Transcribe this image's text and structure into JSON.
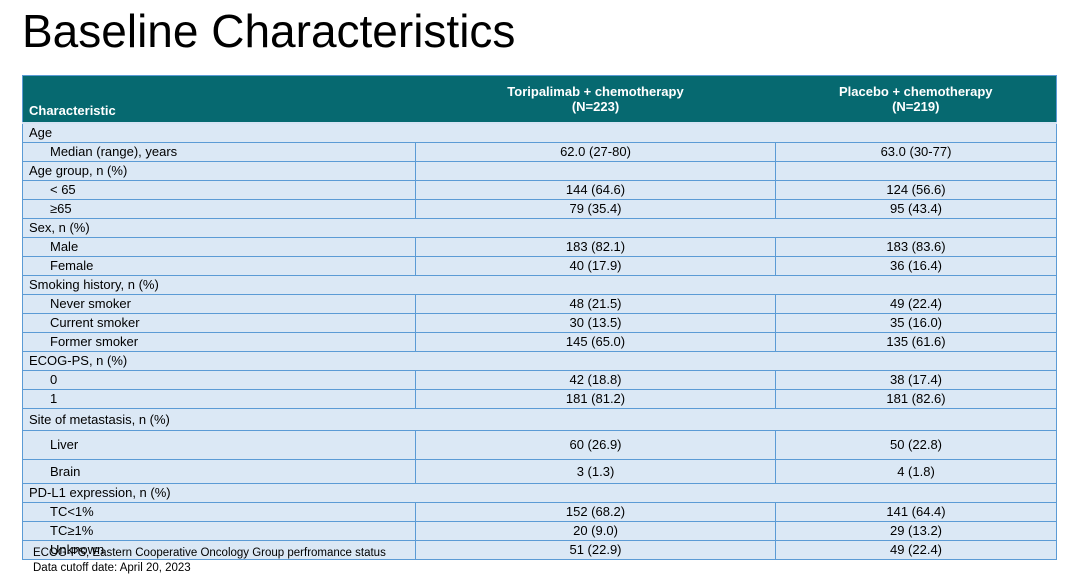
{
  "title": "Baseline Characteristics",
  "colors": {
    "header_bg": "#066970",
    "header_text": "#ffffff",
    "row_bg": "#dbe8f5",
    "border_blue": "#5b9bd5",
    "title_text": "#000000"
  },
  "table": {
    "header": {
      "characteristic": "Characteristic",
      "arm1_line1": "Toripalimab + chemotherapy",
      "arm1_line2": "(N=223)",
      "arm2_line1": "Placebo + chemotherapy",
      "arm2_line2": "(N=219)"
    },
    "rows": [
      {
        "type": "section",
        "divided": false,
        "label": "Age"
      },
      {
        "type": "data",
        "label": "Median (range), years",
        "arm1": "62.0 (27-80)",
        "arm2": "63.0 (30-77)"
      },
      {
        "type": "section",
        "divided": true,
        "label": "Age group, n (%)",
        "arm1": "",
        "arm2": ""
      },
      {
        "type": "data",
        "label": "< 65",
        "arm1": "144 (64.6)",
        "arm2": "124 (56.6)"
      },
      {
        "type": "data",
        "label": "≥65",
        "arm1": "79 (35.4)",
        "arm2": "95 (43.4)"
      },
      {
        "type": "section",
        "divided": false,
        "label": "Sex, n (%)"
      },
      {
        "type": "data",
        "label": "Male",
        "arm1": "183 (82.1)",
        "arm2": "183 (83.6)"
      },
      {
        "type": "data",
        "label": "Female",
        "arm1": "40 (17.9)",
        "arm2": "36 (16.4)"
      },
      {
        "type": "section",
        "divided": false,
        "label": "Smoking history, n (%)"
      },
      {
        "type": "data",
        "label": "Never smoker",
        "arm1": "48 (21.5)",
        "arm2": "49 (22.4)"
      },
      {
        "type": "data",
        "label": "Current smoker",
        "arm1": "30 (13.5)",
        "arm2": "35 (16.0)"
      },
      {
        "type": "data",
        "label": "Former smoker",
        "arm1": "145 (65.0)",
        "arm2": "135 (61.6)"
      },
      {
        "type": "section",
        "divided": false,
        "label": "ECOG-PS, n (%)"
      },
      {
        "type": "data",
        "label": "0",
        "arm1": "42 (18.8)",
        "arm2": "38 (17.4)"
      },
      {
        "type": "data",
        "label": "1",
        "arm1": "181 (81.2)",
        "arm2": "181 (82.6)"
      },
      {
        "type": "section",
        "divided": false,
        "label": "Site of metastasis, n (%)"
      },
      {
        "type": "data",
        "label": "Liver",
        "arm1": "60 (26.9)",
        "arm2": "50 (22.8)"
      },
      {
        "type": "data",
        "label": "Brain",
        "arm1": "3 (1.3)",
        "arm2": "4 (1.8)"
      },
      {
        "type": "section",
        "divided": false,
        "label": "PD-L1 expression, n (%)"
      },
      {
        "type": "data",
        "label": "TC<1%",
        "arm1": "152 (68.2)",
        "arm2": "141 (64.4)"
      },
      {
        "type": "data",
        "label": "TC≥1%",
        "arm1": "20 (9.0)",
        "arm2": "29 (13.2)"
      },
      {
        "type": "data",
        "label": "Unknown",
        "arm1": "51 (22.9)",
        "arm2": "49 (22.4)"
      }
    ]
  },
  "footnotes": [
    "ECOG-PS, Eastern Cooperative Oncology Group perfromance status",
    "Data cutoff date: April 20, 2023"
  ]
}
